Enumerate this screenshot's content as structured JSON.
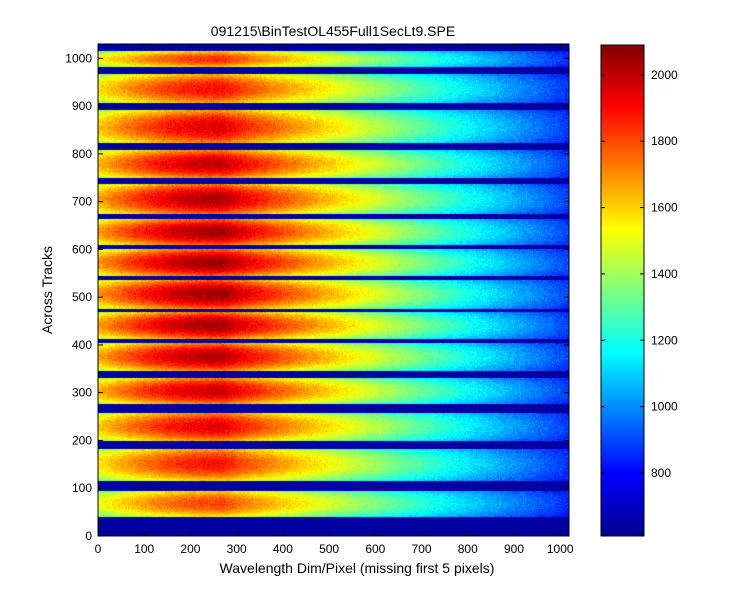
{
  "chart_data": {
    "type": "heatmap",
    "title": "091215\\BinTestOL455Full1SecLt9.SPE",
    "xlabel": "Wavelength Dim/Pixel (missing first 5 pixels)",
    "ylabel": "Across Tracks",
    "xlim": [
      0,
      1019
    ],
    "ylim": [
      0,
      1030
    ],
    "x_ticks": [
      0,
      100,
      200,
      300,
      400,
      500,
      600,
      700,
      800,
      900,
      1000
    ],
    "y_ticks": [
      0,
      100,
      200,
      300,
      400,
      500,
      600,
      700,
      800,
      900,
      1000
    ],
    "colorbar": {
      "colormap": "jet",
      "min": 610,
      "max": 2090,
      "ticks": [
        800,
        1000,
        1200,
        1400,
        1600,
        1800,
        2000
      ],
      "colors": [
        "#00008f",
        "#0000ff",
        "#00ffff",
        "#ffff00",
        "#ff0000",
        "#800000"
      ]
    },
    "background_value": 650,
    "peak_x": 270,
    "peak_value": 2050,
    "edge_value_at_x_1019": 900,
    "dark_band_value": 640,
    "dark_bands": [
      {
        "y0": 0,
        "y1": 40
      },
      {
        "y0": 94,
        "y1": 116
      },
      {
        "y0": 183,
        "y1": 198
      },
      {
        "y0": 258,
        "y1": 276
      },
      {
        "y0": 330,
        "y1": 346
      },
      {
        "y0": 403,
        "y1": 413
      },
      {
        "y0": 468,
        "y1": 476
      },
      {
        "y0": 536,
        "y1": 544
      },
      {
        "y0": 600,
        "y1": 609
      },
      {
        "y0": 664,
        "y1": 674
      },
      {
        "y0": 737,
        "y1": 750
      },
      {
        "y0": 808,
        "y1": 822
      },
      {
        "y0": 892,
        "y1": 906
      },
      {
        "y0": 968,
        "y1": 982
      }
    ],
    "gap_top": {
      "y0": 1015,
      "y1": 1030
    }
  }
}
